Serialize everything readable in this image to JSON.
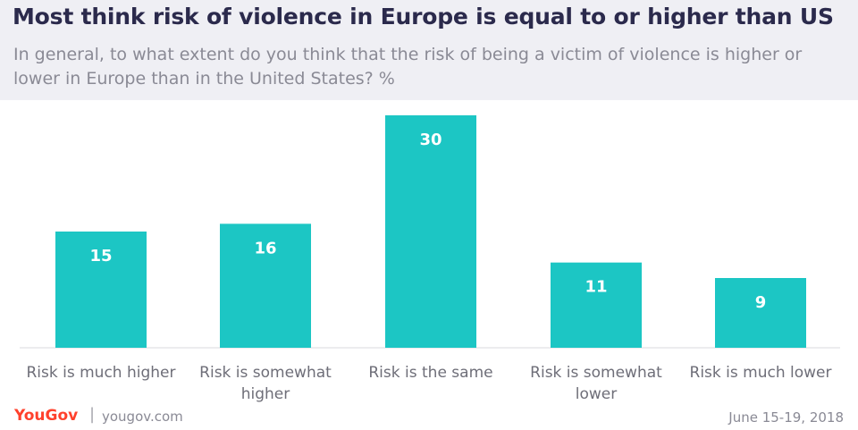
{
  "title": "Most think risk of violence in Europe is equal to or higher than US",
  "subtitle": "In general, to what extent do you think that the risk of being a victim of violence is higher or lower in Europe than in the United States? %",
  "footer": {
    "logo": "YouGov",
    "separator": "|",
    "url": "yougov.com",
    "date": "June 15-19, 2018"
  },
  "colors": {
    "bar": "#1cc6c4",
    "title": "#2b2a4c",
    "subtitle": "#8a8a95",
    "header_bg": "#efeff4",
    "logo": "#ff412c"
  },
  "chart_data": {
    "type": "bar",
    "categories": [
      [
        "Risk is much higher"
      ],
      [
        "Risk is somewhat",
        "higher"
      ],
      [
        "Risk is the same"
      ],
      [
        "Risk is somewhat",
        "lower"
      ],
      [
        "Risk is much lower"
      ]
    ],
    "values": [
      15,
      16,
      30,
      11,
      9
    ],
    "ylim": [
      0,
      30
    ],
    "grid": false,
    "legend": "none"
  }
}
